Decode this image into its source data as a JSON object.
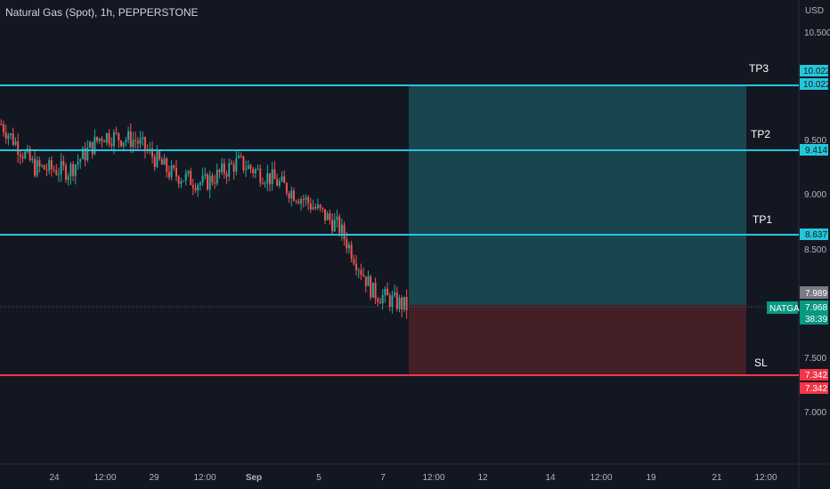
{
  "title": "Natural Gas (Spot), 1h, PEPPERSTONE",
  "currency": "USD",
  "symbol": "NATGAS",
  "countdown": "38:39",
  "colors": {
    "background": "#131722",
    "level_line": "#26c6da",
    "stop_line": "#f23645",
    "target_zone": "#1b4d57",
    "stop_zone": "#4a2027",
    "candle_up": "#26a69a",
    "candle_down": "#ef5350",
    "current_price_tag": "#089981",
    "previous_close_tag": "#787b86"
  },
  "price_axis_ticks": [
    "10.500",
    "9.500",
    "9.000",
    "8.500",
    "7.500",
    "7.000"
  ],
  "time_axis_ticks": [
    "24",
    "12:00",
    "29",
    "12:00",
    "Sep",
    "5",
    "7",
    "12:00",
    "12",
    "14",
    "12:00",
    "19",
    "21",
    "12:00"
  ],
  "levels": [
    {
      "label": "TP3",
      "price": 10.022,
      "tag": "10.022",
      "tag2": "10.022"
    },
    {
      "label": "TP2",
      "price": 9.414,
      "tag": "9.414"
    },
    {
      "label": "TP1",
      "price": 8.637,
      "tag": "8.637"
    },
    {
      "label": "SL",
      "price": 7.342,
      "tag": "7.342",
      "tag2": "7.342"
    }
  ],
  "entry_price": 7.968,
  "previous_close": "7.989",
  "current_price": "7.968",
  "chart_data": {
    "type": "candlestick",
    "title": "Natural Gas (Spot), 1h, PEPPERSTONE",
    "ylabel": "USD",
    "ylim": [
      6.5,
      10.8
    ],
    "approx_close_path": [
      [
        "Aug 23",
        9.65
      ],
      [
        "Aug 24",
        9.25
      ],
      [
        "Aug 25",
        9.22
      ],
      [
        "Aug 28",
        9.55
      ],
      [
        "Aug 29",
        9.5
      ],
      [
        "Aug 30",
        9.2
      ],
      [
        "Aug 31",
        9.1
      ],
      [
        "Sep 1",
        9.3
      ],
      [
        "Sep 4",
        9.15
      ],
      [
        "Sep 5",
        8.95
      ],
      [
        "Sep 6",
        8.7
      ],
      [
        "Sep 7",
        8.1
      ],
      [
        "Sep 8",
        7.968
      ]
    ]
  }
}
